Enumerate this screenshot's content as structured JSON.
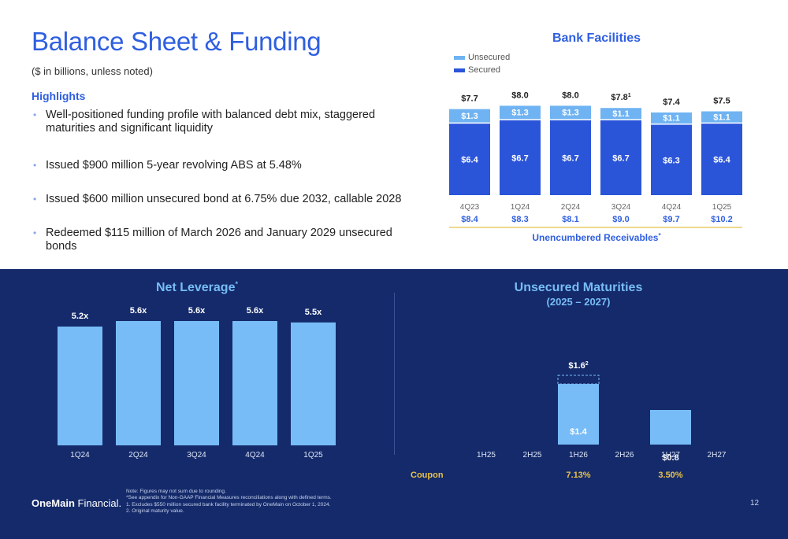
{
  "title": "Balance Sheet & Funding",
  "subtitle": "($ in billions, unless noted)",
  "highlights": {
    "heading": "Highlights",
    "items": [
      "Well-positioned funding profile with balanced debt mix, staggered maturities and significant liquidity",
      "Issued $900 million 5-year revolving ABS at 5.48%",
      "Issued $600 million unsecured bond at 6.75% due 2032, callable 2028",
      "Redeemed $115 million of March 2026 and January 2029 unsecured bonds"
    ]
  },
  "colors": {
    "brand_blue": "#2f5fe0",
    "secured": "#2b55d9",
    "unsecured": "#6fb3f2",
    "navy": "#142a6a",
    "light_bar": "#77bcf6",
    "gold_line": "#e8c24a"
  },
  "chart_data": [
    {
      "type": "bar",
      "title": "Bank Facilities",
      "stacked": true,
      "categories": [
        "4Q23",
        "1Q24",
        "2Q24",
        "3Q24",
        "4Q24",
        "1Q25"
      ],
      "series": [
        {
          "name": "Secured",
          "values": [
            6.4,
            6.7,
            6.7,
            6.7,
            6.3,
            6.4
          ],
          "labels": [
            "$6.4",
            "$6.7",
            "$6.7",
            "$6.7",
            "$6.3",
            "$6.4"
          ]
        },
        {
          "name": "Unsecured",
          "values": [
            1.3,
            1.3,
            1.3,
            1.1,
            1.1,
            1.1
          ],
          "labels": [
            "$1.3",
            "$1.3",
            "$1.3",
            "$1.1",
            "$1.1",
            "$1.1"
          ]
        }
      ],
      "total_labels": [
        "$7.7",
        "$8.0",
        "$8.0",
        "$7.8",
        "$7.4",
        "$7.5"
      ],
      "total_superscripts": [
        "",
        "",
        "",
        "1",
        "",
        ""
      ],
      "ylim": [
        0,
        8.5
      ],
      "legend": "top-left",
      "sub_table": {
        "label": "Unencumbered Receivables",
        "label_mark": "*",
        "values": [
          "$8.4",
          "$8.3",
          "$8.1",
          "$9.0",
          "$9.7",
          "$10.2"
        ]
      }
    },
    {
      "type": "bar",
      "title": "Net Leverage",
      "title_mark": "*",
      "categories": [
        "1Q24",
        "2Q24",
        "3Q24",
        "4Q24",
        "1Q25"
      ],
      "values": [
        5.2,
        5.6,
        5.6,
        5.6,
        5.5
      ],
      "labels": [
        "5.2x",
        "5.6x",
        "5.6x",
        "5.6x",
        "5.5x"
      ],
      "ylim": [
        0,
        6.0
      ]
    },
    {
      "type": "bar",
      "title": "Unsecured Maturities",
      "subtitle": "(2025 – 2027)",
      "categories": [
        "1H25",
        "2H25",
        "1H26",
        "2H26",
        "1H27",
        "2H27"
      ],
      "values": [
        0,
        0,
        1.4,
        0,
        0.8,
        0
      ],
      "labels": [
        "",
        "",
        "$1.4",
        "",
        "$0.8",
        ""
      ],
      "original_maturity": {
        "category": "1H26",
        "value": 1.6,
        "label": "$1.6",
        "mark": "2"
      },
      "ylim": [
        0,
        1.95
      ],
      "coupon": {
        "label": "Coupon",
        "values": [
          "",
          "",
          "7.13%",
          "",
          "3.50%",
          ""
        ]
      }
    }
  ],
  "footer": {
    "logo_bold": "OneMain",
    "logo_regular": " Financial.",
    "notes": [
      "Note: Figures may not sum due to rounding.",
      "*See appendix for Non-GAAP Financial Measures reconciliations along with defined terms.",
      "1. Excludes $550 million secured bank facility terminated by OneMain on October 1, 2024.",
      "2. Original maturity value."
    ],
    "page_number": "12"
  }
}
